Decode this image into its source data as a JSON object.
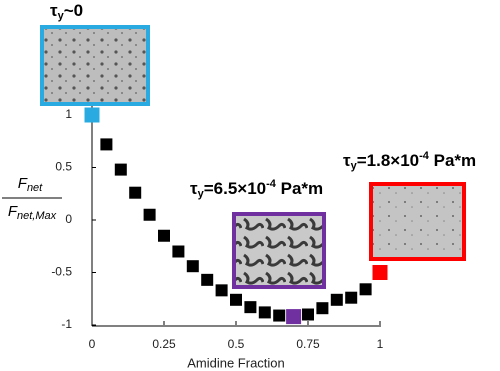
{
  "chart_data": {
    "type": "scatter",
    "x_label": "Amidine Fraction",
    "y_label": {
      "numerator": {
        "main": "F",
        "sub": "net"
      },
      "denominator": {
        "main": "F",
        "sub": "net,Max"
      }
    },
    "x": [
      0,
      0.05,
      0.1,
      0.15,
      0.2,
      0.25,
      0.3,
      0.35,
      0.4,
      0.45,
      0.5,
      0.55,
      0.6,
      0.65,
      0.7,
      0.75,
      0.8,
      0.85,
      0.9,
      0.95,
      1
    ],
    "values": [
      1,
      0.72,
      0.48,
      0.26,
      0.05,
      -0.15,
      -0.3,
      -0.44,
      -0.57,
      -0.67,
      -0.76,
      -0.83,
      -0.88,
      -0.91,
      -0.92,
      -0.9,
      -0.84,
      -0.76,
      -0.74,
      -0.66,
      -0.5
    ],
    "point_colors": [
      "#29abe2",
      "#000000",
      "#000000",
      "#000000",
      "#000000",
      "#000000",
      "#000000",
      "#000000",
      "#000000",
      "#000000",
      "#000000",
      "#000000",
      "#000000",
      "#000000",
      "#7030a0",
      "#000000",
      "#000000",
      "#000000",
      "#000000",
      "#000000",
      "#ff0000"
    ],
    "xlim": [
      0,
      1
    ],
    "ylim": [
      -1,
      1
    ],
    "xticks": [
      0,
      0.25,
      0.5,
      0.75,
      1
    ],
    "yticks": [
      1,
      0.5,
      0,
      -0.5,
      -1
    ],
    "annotations": [
      {
        "main": "τ",
        "sub": "y",
        "rest": "~0"
      },
      {
        "main": "τ",
        "sub": "y",
        "rest": "=6.5×10",
        "sup": "-4",
        "unit": " Pa*m"
      },
      {
        "main": "τ",
        "sub": "y",
        "rest": "=1.8×10",
        "sup": "-4",
        "unit": " Pa*m"
      }
    ]
  }
}
